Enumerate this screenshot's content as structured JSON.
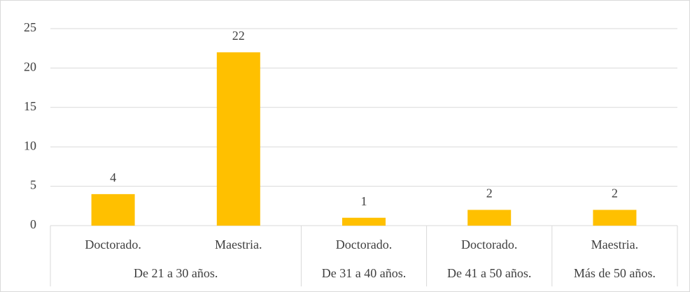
{
  "chart_data": {
    "type": "bar",
    "color": "#ffc000",
    "grid": true,
    "ylim": [
      0,
      25
    ],
    "yticks": [
      0,
      5,
      10,
      15,
      20,
      25
    ],
    "groups": [
      {
        "name": "De 21 a 30 años.",
        "categories": [
          "Doctorado.",
          "Maestria."
        ],
        "values": [
          4,
          22
        ]
      },
      {
        "name": "De 31 a 40 años.",
        "categories": [
          "Doctorado."
        ],
        "values": [
          1
        ]
      },
      {
        "name": "De 41 a 50 años.",
        "categories": [
          "Doctorado."
        ],
        "values": [
          2
        ]
      },
      {
        "name": "Más de 50 años.",
        "categories": [
          "Maestria."
        ],
        "values": [
          2
        ]
      }
    ]
  }
}
